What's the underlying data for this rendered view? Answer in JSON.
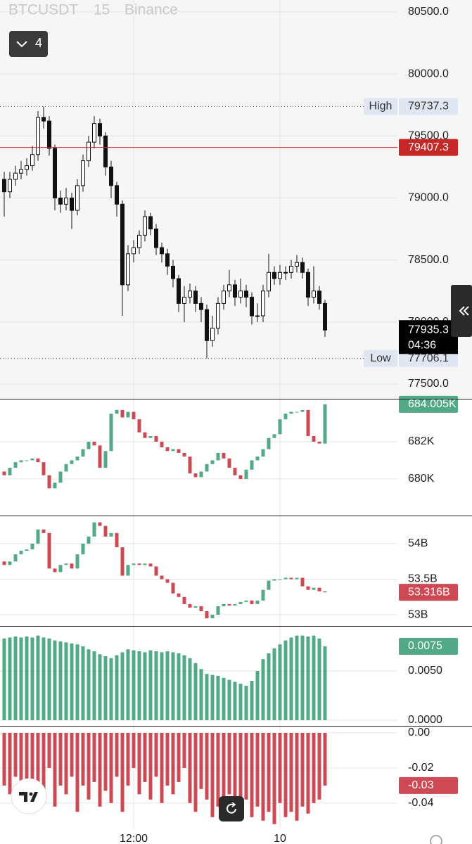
{
  "header": {
    "symbol": "BTCUSDT",
    "interval": "15",
    "exchange": "Binance",
    "collapsed_count": 4
  },
  "chart_data": [
    {
      "type": "candlestick",
      "categories": [
        null,
        null,
        null,
        null,
        null,
        null,
        null,
        null,
        null,
        null,
        null,
        null,
        null,
        null,
        null,
        null,
        null,
        null,
        null,
        null,
        null,
        null,
        null,
        "12:00",
        null,
        null,
        null,
        null,
        null,
        null,
        null,
        null,
        null,
        null,
        null,
        null,
        null,
        null,
        null,
        null,
        null,
        null,
        null,
        null,
        null,
        null,
        null,
        null,
        null,
        "10",
        null,
        null,
        null,
        null,
        null,
        null,
        null,
        null
      ],
      "open": [
        79150,
        79050,
        79150,
        79200,
        79230,
        79260,
        79350,
        79650,
        79620,
        79400,
        79000,
        78950,
        79000,
        78900,
        79100,
        79300,
        79450,
        79600,
        79500,
        79250,
        79100,
        78950,
        78300,
        78550,
        78600,
        78700,
        78850,
        78750,
        78600,
        78550,
        78450,
        78350,
        78150,
        78200,
        78250,
        78150,
        78100,
        77850,
        77950,
        78150,
        78250,
        78300,
        78200,
        78250,
        78200,
        78050,
        78050,
        78250,
        78400,
        78350,
        78400,
        78400,
        78450,
        78480,
        78400,
        78200,
        78250,
        78150
      ],
      "high": [
        79210,
        79210,
        79260,
        79300,
        79320,
        79420,
        79700,
        79737.3,
        79660,
        79430,
        79060,
        79080,
        79040,
        79150,
        79350,
        79500,
        79660,
        79640,
        79530,
        79300,
        79130,
        78980,
        78620,
        78660,
        78740,
        78900,
        78880,
        78790,
        78640,
        78590,
        78500,
        78380,
        78290,
        78310,
        78290,
        78200,
        78140,
        78050,
        78200,
        78300,
        78420,
        78340,
        78350,
        78300,
        78240,
        78150,
        78300,
        78550,
        78450,
        78460,
        78450,
        78500,
        78540,
        78520,
        78430,
        78450,
        78290,
        78180
      ],
      "low": [
        78850,
        79000,
        79100,
        79150,
        79180,
        79220,
        79300,
        79560,
        79340,
        78900,
        78880,
        78900,
        78750,
        78860,
        79050,
        79250,
        79400,
        79430,
        79180,
        79000,
        78850,
        78050,
        78250,
        78480,
        78550,
        78650,
        78700,
        78540,
        78480,
        78380,
        78280,
        78080,
        78000,
        78150,
        78080,
        78000,
        77706.1,
        77800,
        77900,
        78100,
        78200,
        78130,
        78150,
        78120,
        77980,
        78000,
        78000,
        78200,
        78300,
        78300,
        78340,
        78350,
        78400,
        78350,
        78130,
        78150,
        78100,
        77880
      ],
      "close": [
        79050,
        79150,
        79200,
        79230,
        79260,
        79350,
        79650,
        79620,
        79400,
        79000,
        78950,
        79000,
        78900,
        79100,
        79300,
        79450,
        79600,
        79500,
        79250,
        79100,
        78950,
        78300,
        78550,
        78600,
        78700,
        78850,
        78750,
        78600,
        78550,
        78450,
        78350,
        78150,
        78200,
        78250,
        78150,
        78100,
        77850,
        77950,
        78150,
        78250,
        78300,
        78200,
        78250,
        78200,
        78050,
        78050,
        78250,
        78400,
        78350,
        78400,
        78400,
        78450,
        78480,
        78400,
        78200,
        78250,
        78150,
        77935.3
      ],
      "up_color": "#ffffff",
      "down_color": "#111111",
      "border_color": "#111111",
      "ylim": [
        77381,
        80596
      ],
      "yticks": [
        {
          "value": 77500,
          "label": "77500.0"
        },
        {
          "value": 78000,
          "label": "78000.0"
        },
        {
          "value": 78500,
          "label": "78500.0"
        },
        {
          "value": 79000,
          "label": "79000.0"
        },
        {
          "value": 79500,
          "label": "79500.0"
        },
        {
          "value": 80000,
          "label": "80000.0"
        },
        {
          "value": 80500,
          "label": "80500.0"
        }
      ],
      "grid": true,
      "price_lines": [
        {
          "name": "High",
          "value": 79737.3,
          "color": "#555555",
          "style": "dotted"
        },
        {
          "value": 79407.3,
          "color": "#c62828",
          "style": "solid"
        },
        {
          "name": "Low",
          "value": 77706.1,
          "color": "#555555",
          "style": "dotted"
        }
      ],
      "countdown": "04:36"
    },
    {
      "type": "candlestick",
      "open": [
        680.4,
        680.2,
        680.6,
        680.9,
        681.0,
        681.0,
        681.1,
        680.9,
        680.2,
        679.5,
        679.8,
        680.4,
        680.8,
        681.0,
        681.2,
        681.6,
        682.0,
        681.8,
        680.6,
        681.5,
        683.5,
        683.7,
        683.3,
        683.6,
        683.2,
        682.5,
        682.2,
        682.3,
        682.0,
        681.7,
        681.5,
        681.6,
        681.4,
        681.2,
        680.3,
        680.1,
        680.4,
        680.8,
        681.0,
        681.4,
        681.1,
        680.6,
        680.2,
        680.0,
        680.5,
        681.0,
        681.2,
        681.6,
        682.2,
        682.4,
        683.2,
        683.5,
        683.6,
        683.6,
        683.7,
        682.3,
        682.0,
        681.9
      ],
      "close": [
        680.2,
        680.6,
        680.9,
        681.0,
        681.0,
        681.1,
        680.9,
        680.2,
        679.5,
        679.8,
        680.4,
        680.8,
        681.0,
        681.2,
        681.6,
        682.0,
        681.8,
        680.6,
        681.5,
        683.5,
        683.7,
        683.3,
        683.6,
        683.2,
        682.5,
        682.2,
        682.3,
        682.0,
        681.7,
        681.5,
        681.6,
        681.4,
        681.2,
        680.3,
        680.1,
        680.4,
        680.8,
        681.0,
        681.4,
        681.1,
        680.6,
        680.2,
        680.0,
        680.5,
        681.0,
        681.2,
        681.6,
        682.2,
        682.4,
        683.2,
        683.5,
        683.6,
        683.6,
        683.7,
        682.3,
        682.0,
        681.9,
        684.005
      ],
      "up_color": "#52a986",
      "down_color": "#cd4a54",
      "ylim": [
        678.04,
        684.3
      ],
      "yticks": [
        {
          "value": 680,
          "label": "680K"
        },
        {
          "value": 682,
          "label": "682K"
        }
      ],
      "grid": true,
      "last_value_label": "684.005K"
    },
    {
      "type": "candlestick",
      "open": [
        53.75,
        53.7,
        53.75,
        53.85,
        53.9,
        53.92,
        54.0,
        54.2,
        54.15,
        53.65,
        53.6,
        53.7,
        53.72,
        53.65,
        53.85,
        54.0,
        54.1,
        54.3,
        54.25,
        54.1,
        54.15,
        53.95,
        53.55,
        53.7,
        53.72,
        53.7,
        53.72,
        53.68,
        53.55,
        53.5,
        53.45,
        53.3,
        53.25,
        53.15,
        53.1,
        53.12,
        53.05,
        52.95,
        53.0,
        53.12,
        53.15,
        53.13,
        53.15,
        53.18,
        53.2,
        53.15,
        53.2,
        53.35,
        53.48,
        53.5,
        53.5,
        53.52,
        53.5,
        53.52,
        53.4,
        53.35,
        53.38,
        53.33
      ],
      "close": [
        53.7,
        53.75,
        53.85,
        53.9,
        53.92,
        54.0,
        54.2,
        54.15,
        53.65,
        53.6,
        53.7,
        53.72,
        53.65,
        53.85,
        54.0,
        54.1,
        54.3,
        54.25,
        54.1,
        54.15,
        53.95,
        53.55,
        53.7,
        53.72,
        53.7,
        53.72,
        53.68,
        53.55,
        53.5,
        53.45,
        53.3,
        53.25,
        53.15,
        53.1,
        53.12,
        53.05,
        52.95,
        53.0,
        53.12,
        53.15,
        53.13,
        53.15,
        53.18,
        53.2,
        53.15,
        53.2,
        53.35,
        53.48,
        53.5,
        53.5,
        53.52,
        53.5,
        53.52,
        53.4,
        53.35,
        53.38,
        53.33,
        53.316
      ],
      "up_color": "#52a986",
      "down_color": "#cd4a54",
      "ylim": [
        52.842,
        54.396
      ],
      "yticks": [
        {
          "value": 53,
          "label": "53B"
        },
        {
          "value": 53.5,
          "label": "53.5B"
        },
        {
          "value": 54,
          "label": "54B"
        }
      ],
      "grid": true,
      "last_value_label": "53.316B"
    },
    {
      "type": "bar",
      "values": [
        0.0083,
        0.0084,
        0.0085,
        0.0084,
        0.0085,
        0.0084,
        0.0086,
        0.0084,
        0.0083,
        0.0081,
        0.008,
        0.0079,
        0.0078,
        0.0077,
        0.0075,
        0.0072,
        0.007,
        0.0067,
        0.0065,
        0.0063,
        0.0066,
        0.0069,
        0.0072,
        0.0071,
        0.007,
        0.0069,
        0.0071,
        0.007,
        0.0069,
        0.007,
        0.0069,
        0.0068,
        0.0066,
        0.0063,
        0.0058,
        0.0052,
        0.0047,
        0.0046,
        0.0045,
        0.0043,
        0.0041,
        0.0039,
        0.0037,
        0.0035,
        0.004,
        0.005,
        0.0062,
        0.0068,
        0.0073,
        0.0077,
        0.0081,
        0.0084,
        0.0086,
        0.0086,
        0.0085,
        0.0086,
        0.0083,
        0.0075
      ],
      "color": "#52a986",
      "ylim": [
        -0.00057,
        0.00957
      ],
      "yticks": [
        {
          "value": 0,
          "label": "0.0000"
        },
        {
          "value": 0.005,
          "label": "0.0050"
        }
      ],
      "grid": true
    },
    {
      "type": "bar",
      "values": [
        -0.03,
        -0.035,
        -0.025,
        -0.04,
        -0.028,
        -0.045,
        -0.032,
        -0.038,
        -0.02,
        -0.042,
        -0.03,
        -0.035,
        -0.025,
        -0.045,
        -0.03,
        -0.038,
        -0.028,
        -0.042,
        -0.033,
        -0.04,
        -0.025,
        -0.045,
        -0.03,
        -0.02,
        -0.035,
        -0.028,
        -0.038,
        -0.025,
        -0.04,
        -0.03,
        -0.035,
        -0.028,
        -0.02,
        -0.04,
        -0.045,
        -0.032,
        -0.038,
        -0.048,
        -0.042,
        -0.05,
        -0.035,
        -0.045,
        -0.04,
        -0.038,
        -0.048,
        -0.042,
        -0.05,
        -0.045,
        -0.052,
        -0.04,
        -0.048,
        -0.045,
        -0.05,
        -0.042,
        -0.046,
        -0.04,
        -0.038,
        -0.03
      ],
      "color": "#cd4a54",
      "ylim": [
        -0.0545,
        0.004
      ],
      "yticks": [
        {
          "value": 0,
          "label": "0.00"
        },
        {
          "value": -0.02,
          "label": "-0.02"
        },
        {
          "value": -0.04,
          "label": "-0.04"
        }
      ],
      "grid": true,
      "last_value_label": "-0.03"
    }
  ]
}
